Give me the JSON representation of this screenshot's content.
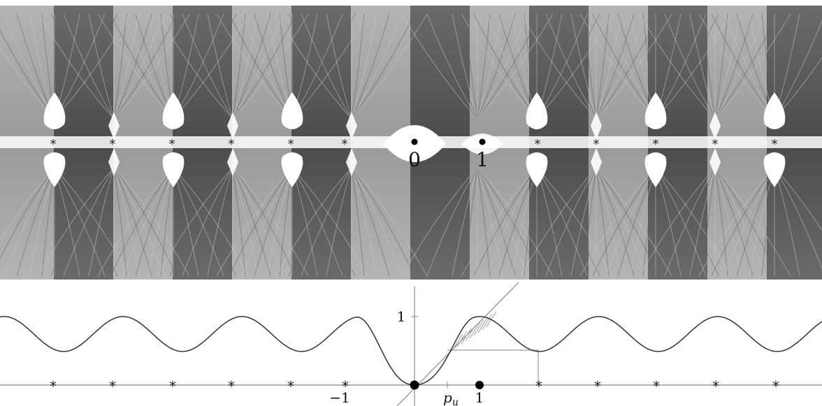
{
  "fractal": {
    "labels": {
      "zero": "0",
      "one": "1",
      "star": "*"
    },
    "colors": {
      "background": "#8c8c8c",
      "basin": "#ffffff",
      "dark_band": "#5a5a5a",
      "light_band": "#a8a8a8"
    }
  },
  "graph": {
    "labels": {
      "y_one": "1",
      "x_neg_one": "−1",
      "p_u": "p",
      "p_u_sub": "u",
      "x_one": "1",
      "star": "*"
    },
    "colors": {
      "curve": "#333333",
      "axis": "#888888",
      "diagonal": "#888888",
      "shading": "#888888"
    }
  }
}
